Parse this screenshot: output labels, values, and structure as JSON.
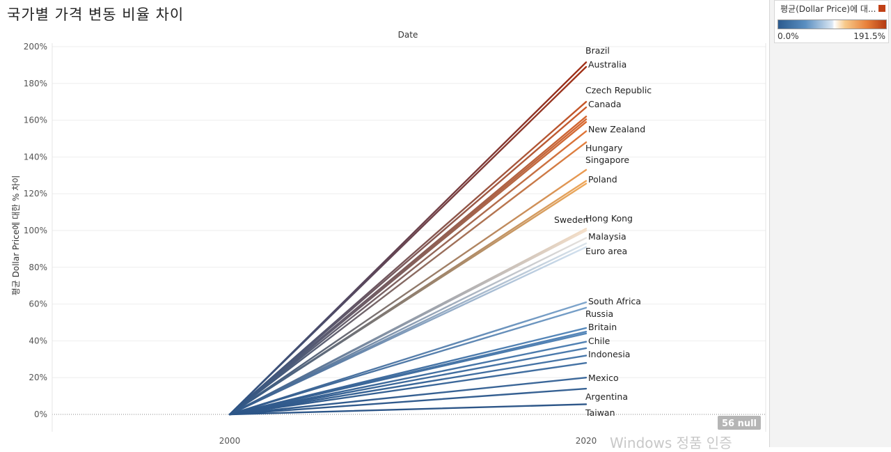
{
  "title": "국가별 가격 변동 비율 차이",
  "legend": {
    "title": "평균(Dollar Price)에 대...",
    "min_label": "0.0%",
    "max_label": "191.5%"
  },
  "null_badge": "56 null",
  "watermark": "Windows 정품 인증",
  "chart_data": {
    "type": "line",
    "header": "Date",
    "ylabel": "평균 Dollar Price에 대한 % 차이",
    "x": [
      "2000",
      "2020"
    ],
    "ylim": [
      0,
      200
    ],
    "yticks": [
      "0%",
      "20%",
      "40%",
      "60%",
      "80%",
      "100%",
      "120%",
      "140%",
      "160%",
      "180%",
      "200%"
    ],
    "color_range": [
      "#2b5b8f",
      "#b33a12"
    ],
    "series": [
      {
        "name": "Brazil",
        "values": [
          0,
          191.5
        ],
        "labeled": true
      },
      {
        "name": "Australia",
        "values": [
          0,
          189
        ],
        "labeled": true
      },
      {
        "name": "",
        "values": [
          0,
          170
        ],
        "labeled": false
      },
      {
        "name": "Czech Republic",
        "values": [
          0,
          167
        ],
        "labeled": true
      },
      {
        "name": "Canada",
        "values": [
          0,
          162
        ],
        "labeled": true
      },
      {
        "name": "",
        "values": [
          0,
          160.5
        ],
        "labeled": false
      },
      {
        "name": "",
        "values": [
          0,
          159
        ],
        "labeled": false
      },
      {
        "name": "New Zealand",
        "values": [
          0,
          154
        ],
        "labeled": true
      },
      {
        "name": "Hungary",
        "values": [
          0,
          148
        ],
        "labeled": true
      },
      {
        "name": "Singapore",
        "values": [
          0,
          133
        ],
        "labeled": true
      },
      {
        "name": "Poland",
        "values": [
          0,
          127
        ],
        "labeled": true
      },
      {
        "name": "",
        "values": [
          0,
          125.5
        ],
        "labeled": false
      },
      {
        "name": "Hong Kong",
        "values": [
          0,
          101
        ],
        "labeled": true
      },
      {
        "name": "Sweden",
        "values": [
          0,
          100
        ],
        "labeled": true
      },
      {
        "name": "Malaysia",
        "values": [
          0,
          96
        ],
        "labeled": true
      },
      {
        "name": "Euro area",
        "values": [
          0,
          93
        ],
        "labeled": true
      },
      {
        "name": "",
        "values": [
          0,
          91
        ],
        "labeled": false
      },
      {
        "name": "South Africa",
        "values": [
          0,
          61
        ],
        "labeled": true
      },
      {
        "name": "Russia",
        "values": [
          0,
          58
        ],
        "labeled": true
      },
      {
        "name": "Britain",
        "values": [
          0,
          47
        ],
        "labeled": true
      },
      {
        "name": "",
        "values": [
          0,
          45
        ],
        "labeled": false
      },
      {
        "name": "",
        "values": [
          0,
          44
        ],
        "labeled": false
      },
      {
        "name": "Chile",
        "values": [
          0,
          39.5
        ],
        "labeled": true
      },
      {
        "name": "",
        "values": [
          0,
          36
        ],
        "labeled": false
      },
      {
        "name": "Indonesia",
        "values": [
          0,
          32
        ],
        "labeled": true
      },
      {
        "name": "",
        "values": [
          0,
          28
        ],
        "labeled": false
      },
      {
        "name": "Mexico",
        "values": [
          0,
          20
        ],
        "labeled": true
      },
      {
        "name": "Argentina",
        "values": [
          0,
          14
        ],
        "labeled": true
      },
      {
        "name": "Taiwan",
        "values": [
          0,
          5.5
        ],
        "labeled": true
      }
    ]
  }
}
